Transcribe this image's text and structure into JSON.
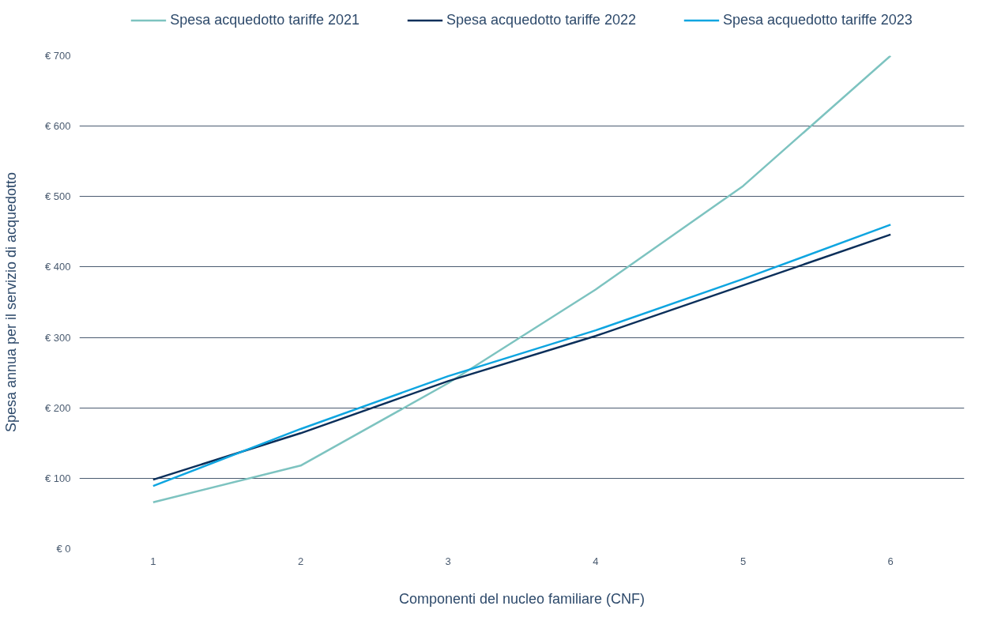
{
  "chart_data": {
    "type": "line",
    "xlabel": "Componenti del nucleo familiare (CNF)",
    "ylabel": "Spesa annua per il servizio di acquedotto",
    "x": [
      1,
      2,
      3,
      4,
      5,
      6
    ],
    "series": [
      {
        "name": "Spesa acquedotto tariffe 2021",
        "color": "#7dc3c0",
        "values": [
          66,
          118,
          235,
          368,
          515,
          700
        ]
      },
      {
        "name": "Spesa acquedotto tariffe 2022",
        "color": "#0b2f5a",
        "values": [
          98,
          164,
          238,
          302,
          374,
          446
        ]
      },
      {
        "name": "Spesa acquedotto tariffe 2023",
        "color": "#0ea5e0",
        "values": [
          89,
          170,
          245,
          310,
          383,
          460
        ]
      }
    ],
    "xlim": [
      0.5,
      6.5
    ],
    "xticks": [
      1,
      2,
      3,
      4,
      5,
      6
    ],
    "ylim": [
      0,
      700
    ],
    "yticks": [
      {
        "value": 0,
        "label": "€ 0"
      },
      {
        "value": 100,
        "label": "€ 100"
      },
      {
        "value": 200,
        "label": "€ 200"
      },
      {
        "value": 300,
        "label": "€ 300"
      },
      {
        "value": 400,
        "label": "€ 400"
      },
      {
        "value": 500,
        "label": "€ 500"
      },
      {
        "value": 600,
        "label": "€ 600"
      },
      {
        "value": 700,
        "label": "€ 700"
      }
    ],
    "grid": "y",
    "legend": "top",
    "marker": "none",
    "line_style": "solid"
  }
}
